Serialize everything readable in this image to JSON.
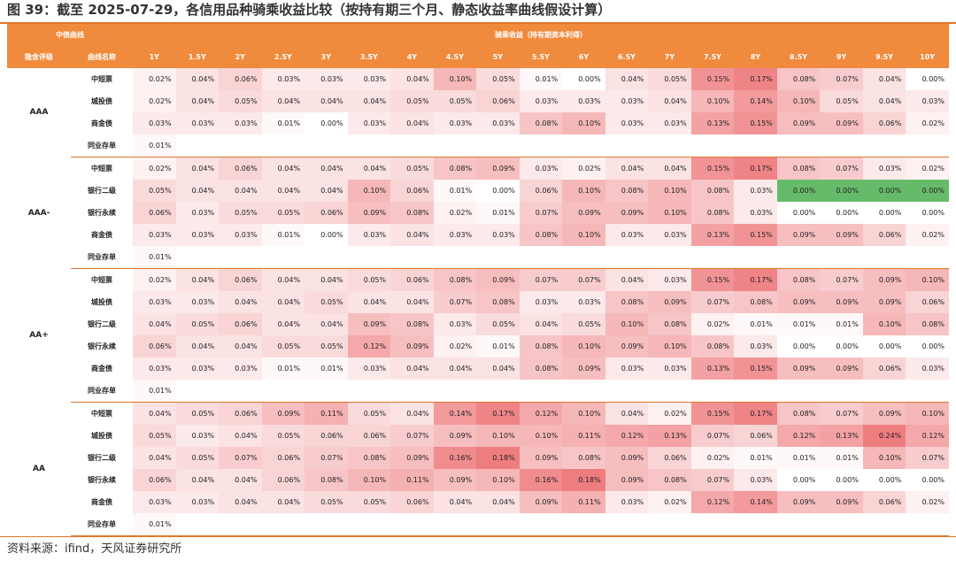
{
  "title": "图 39：截至 2025-07-29，各信用品种骑乘收益比较（按持有期三个月、静态收益率曲线假设计算）",
  "header": {
    "left_group": "中债曲线",
    "right_group": "骑乘收益（持有期资本利得）",
    "col_rating": "隐含评级",
    "col_curve": "曲线名称",
    "terms": [
      "1Y",
      "1.5Y",
      "2Y",
      "2.5Y",
      "3Y",
      "3.5Y",
      "4Y",
      "4.5Y",
      "5Y",
      "5.5Y",
      "6Y",
      "6.5Y",
      "7Y",
      "7.5Y",
      "8Y",
      "8.5Y",
      "9Y",
      "9.5Y",
      "10Y"
    ]
  },
  "groups": [
    {
      "rating": "AAA",
      "rows": [
        {
          "name": "中短票",
          "values": [
            "0.02%",
            "0.04%",
            "0.06%",
            "0.03%",
            "0.03%",
            "0.03%",
            "0.04%",
            "0.10%",
            "0.05%",
            "0.01%",
            "0.00%",
            "0.04%",
            "0.05%",
            "0.15%",
            "0.17%",
            "0.08%",
            "0.07%",
            "0.04%",
            "0.00%"
          ]
        },
        {
          "name": "城投债",
          "values": [
            "0.02%",
            "0.04%",
            "0.05%",
            "0.04%",
            "0.04%",
            "0.04%",
            "0.05%",
            "0.05%",
            "0.06%",
            "0.03%",
            "0.03%",
            "0.03%",
            "0.04%",
            "0.10%",
            "0.14%",
            "0.10%",
            "0.05%",
            "0.04%",
            "0.03%"
          ]
        },
        {
          "name": "商金债",
          "values": [
            "0.03%",
            "0.03%",
            "0.03%",
            "0.01%",
            "0.00%",
            "0.03%",
            "0.04%",
            "0.03%",
            "0.03%",
            "0.08%",
            "0.10%",
            "0.03%",
            "0.03%",
            "0.13%",
            "0.15%",
            "0.09%",
            "0.09%",
            "0.06%",
            "0.02%"
          ]
        },
        {
          "name": "同业存单",
          "values": [
            "0.01%"
          ]
        }
      ]
    },
    {
      "rating": "AAA-",
      "rows": [
        {
          "name": "中短票",
          "values": [
            "0.02%",
            "0.04%",
            "0.06%",
            "0.04%",
            "0.04%",
            "0.04%",
            "0.05%",
            "0.08%",
            "0.09%",
            "0.03%",
            "0.02%",
            "0.04%",
            "0.04%",
            "0.15%",
            "0.17%",
            "0.08%",
            "0.07%",
            "0.03%",
            "0.02%"
          ]
        },
        {
          "name": "银行二级",
          "values": [
            "0.05%",
            "0.04%",
            "0.04%",
            "0.04%",
            "0.04%",
            "0.10%",
            "0.06%",
            "0.01%",
            "0.00%",
            "0.06%",
            "0.10%",
            "0.08%",
            "0.10%",
            "0.08%",
            "0.03%",
            "0.00%",
            "0.00%",
            "0.00%",
            "0.00%"
          ]
        },
        {
          "name": "银行永续",
          "values": [
            "0.06%",
            "0.03%",
            "0.05%",
            "0.05%",
            "0.06%",
            "0.09%",
            "0.08%",
            "0.02%",
            "0.01%",
            "0.07%",
            "0.09%",
            "0.09%",
            "0.10%",
            "0.08%",
            "0.03%",
            "0.00%",
            "0.00%",
            "0.00%",
            "0.00%"
          ]
        },
        {
          "name": "商金债",
          "values": [
            "0.03%",
            "0.03%",
            "0.03%",
            "0.01%",
            "0.00%",
            "0.03%",
            "0.04%",
            "0.03%",
            "0.03%",
            "0.08%",
            "0.10%",
            "0.03%",
            "0.03%",
            "0.13%",
            "0.15%",
            "0.09%",
            "0.09%",
            "0.06%",
            "0.02%"
          ]
        },
        {
          "name": "同业存单",
          "values": [
            "0.01%"
          ]
        }
      ]
    },
    {
      "rating": "AA+",
      "rows": [
        {
          "name": "中短票",
          "values": [
            "0.02%",
            "0.04%",
            "0.06%",
            "0.04%",
            "0.04%",
            "0.05%",
            "0.06%",
            "0.08%",
            "0.09%",
            "0.07%",
            "0.07%",
            "0.04%",
            "0.03%",
            "0.15%",
            "0.17%",
            "0.08%",
            "0.07%",
            "0.09%",
            "0.10%"
          ]
        },
        {
          "name": "城投债",
          "values": [
            "0.03%",
            "0.03%",
            "0.04%",
            "0.04%",
            "0.05%",
            "0.04%",
            "0.04%",
            "0.07%",
            "0.08%",
            "0.03%",
            "0.03%",
            "0.08%",
            "0.09%",
            "0.07%",
            "0.08%",
            "0.09%",
            "0.09%",
            "0.09%",
            "0.06%"
          ]
        },
        {
          "name": "银行二级",
          "values": [
            "0.04%",
            "0.05%",
            "0.06%",
            "0.04%",
            "0.04%",
            "0.09%",
            "0.08%",
            "0.03%",
            "0.05%",
            "0.04%",
            "0.05%",
            "0.10%",
            "0.08%",
            "0.02%",
            "0.01%",
            "0.01%",
            "0.01%",
            "0.10%",
            "0.08%"
          ]
        },
        {
          "name": "银行永续",
          "values": [
            "0.06%",
            "0.04%",
            "0.04%",
            "0.05%",
            "0.05%",
            "0.12%",
            "0.09%",
            "0.02%",
            "0.01%",
            "0.08%",
            "0.10%",
            "0.09%",
            "0.10%",
            "0.08%",
            "0.03%",
            "0.00%",
            "0.00%",
            "0.00%",
            "0.00%"
          ]
        },
        {
          "name": "商金债",
          "values": [
            "0.03%",
            "0.03%",
            "0.03%",
            "0.01%",
            "0.01%",
            "0.03%",
            "0.04%",
            "0.04%",
            "0.04%",
            "0.08%",
            "0.09%",
            "0.03%",
            "0.03%",
            "0.13%",
            "0.15%",
            "0.09%",
            "0.09%",
            "0.06%",
            "0.03%"
          ]
        },
        {
          "name": "同业存单",
          "values": [
            "0.01%"
          ]
        }
      ]
    },
    {
      "rating": "AA",
      "rows": [
        {
          "name": "中短票",
          "values": [
            "0.04%",
            "0.05%",
            "0.06%",
            "0.09%",
            "0.11%",
            "0.05%",
            "0.04%",
            "0.14%",
            "0.17%",
            "0.12%",
            "0.10%",
            "0.04%",
            "0.02%",
            "0.15%",
            "0.17%",
            "0.08%",
            "0.07%",
            "0.09%",
            "0.10%"
          ]
        },
        {
          "name": "城投债",
          "values": [
            "0.05%",
            "0.03%",
            "0.04%",
            "0.05%",
            "0.06%",
            "0.06%",
            "0.07%",
            "0.09%",
            "0.10%",
            "0.10%",
            "0.11%",
            "0.12%",
            "0.13%",
            "0.07%",
            "0.06%",
            "0.12%",
            "0.13%",
            "0.24%",
            "0.12%"
          ]
        },
        {
          "name": "银行二级",
          "values": [
            "0.04%",
            "0.05%",
            "0.07%",
            "0.06%",
            "0.07%",
            "0.08%",
            "0.09%",
            "0.16%",
            "0.18%",
            "0.09%",
            "0.08%",
            "0.09%",
            "0.06%",
            "0.02%",
            "0.01%",
            "0.01%",
            "0.01%",
            "0.10%",
            "0.07%"
          ]
        },
        {
          "name": "银行永续",
          "values": [
            "0.06%",
            "0.04%",
            "0.04%",
            "0.06%",
            "0.08%",
            "0.10%",
            "0.11%",
            "0.09%",
            "0.10%",
            "0.16%",
            "0.18%",
            "0.09%",
            "0.08%",
            "0.07%",
            "0.03%",
            "0.00%",
            "0.00%",
            "0.00%",
            "0.00%"
          ]
        },
        {
          "name": "商金债",
          "values": [
            "0.03%",
            "0.03%",
            "0.04%",
            "0.04%",
            "0.05%",
            "0.05%",
            "0.06%",
            "0.04%",
            "0.04%",
            "0.09%",
            "0.11%",
            "0.03%",
            "0.02%",
            "0.12%",
            "0.14%",
            "0.09%",
            "0.09%",
            "0.06%",
            "0.02%"
          ]
        },
        {
          "name": "同业存单",
          "values": [
            "0.01%"
          ]
        }
      ]
    }
  ],
  "highlight_cells": [
    {
      "group": 1,
      "row": 1,
      "cols": [
        15,
        16,
        17,
        18
      ],
      "color": "#66bb6a"
    }
  ],
  "colors": {
    "header": "#f08a3c",
    "rule": "#e2762b",
    "heat_high": "#ee7d80",
    "heat_low": "#ffffff",
    "highlight": "#66bb6a"
  },
  "source": "资料来源：ifind，天风证券研究所"
}
